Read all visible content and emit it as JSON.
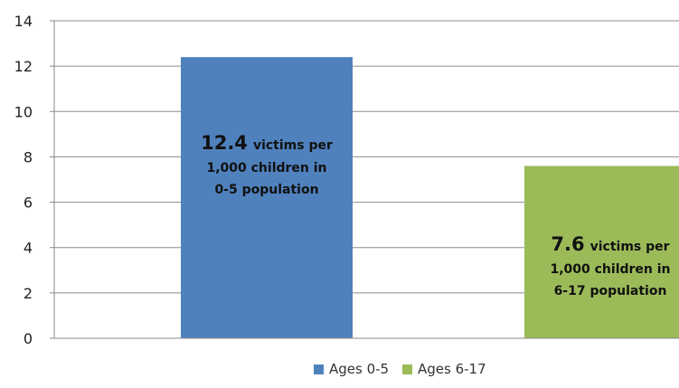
{
  "chart_data": {
    "type": "bar",
    "categories": [
      "Ages 0-5",
      "Ages 6-17"
    ],
    "values": [
      12.4,
      7.6
    ],
    "colors": [
      "#4F81BD",
      "#9BBB59"
    ],
    "ylim": [
      0,
      14
    ],
    "yticks": [
      "0",
      "2",
      "4",
      "6",
      "8",
      "10",
      "12",
      "14"
    ],
    "grid": true,
    "legend_position": "bottom",
    "legend": [
      "Ages 0-5",
      "Ages 6-17"
    ],
    "data_labels": [
      {
        "value": "12.4",
        "rest": "victims per",
        "line2": "1,000 children in",
        "line3": "0-5 population"
      },
      {
        "value": "7.6",
        "rest": "victims per",
        "line2": "1,000 children in",
        "line3": "6-17 population"
      }
    ]
  }
}
